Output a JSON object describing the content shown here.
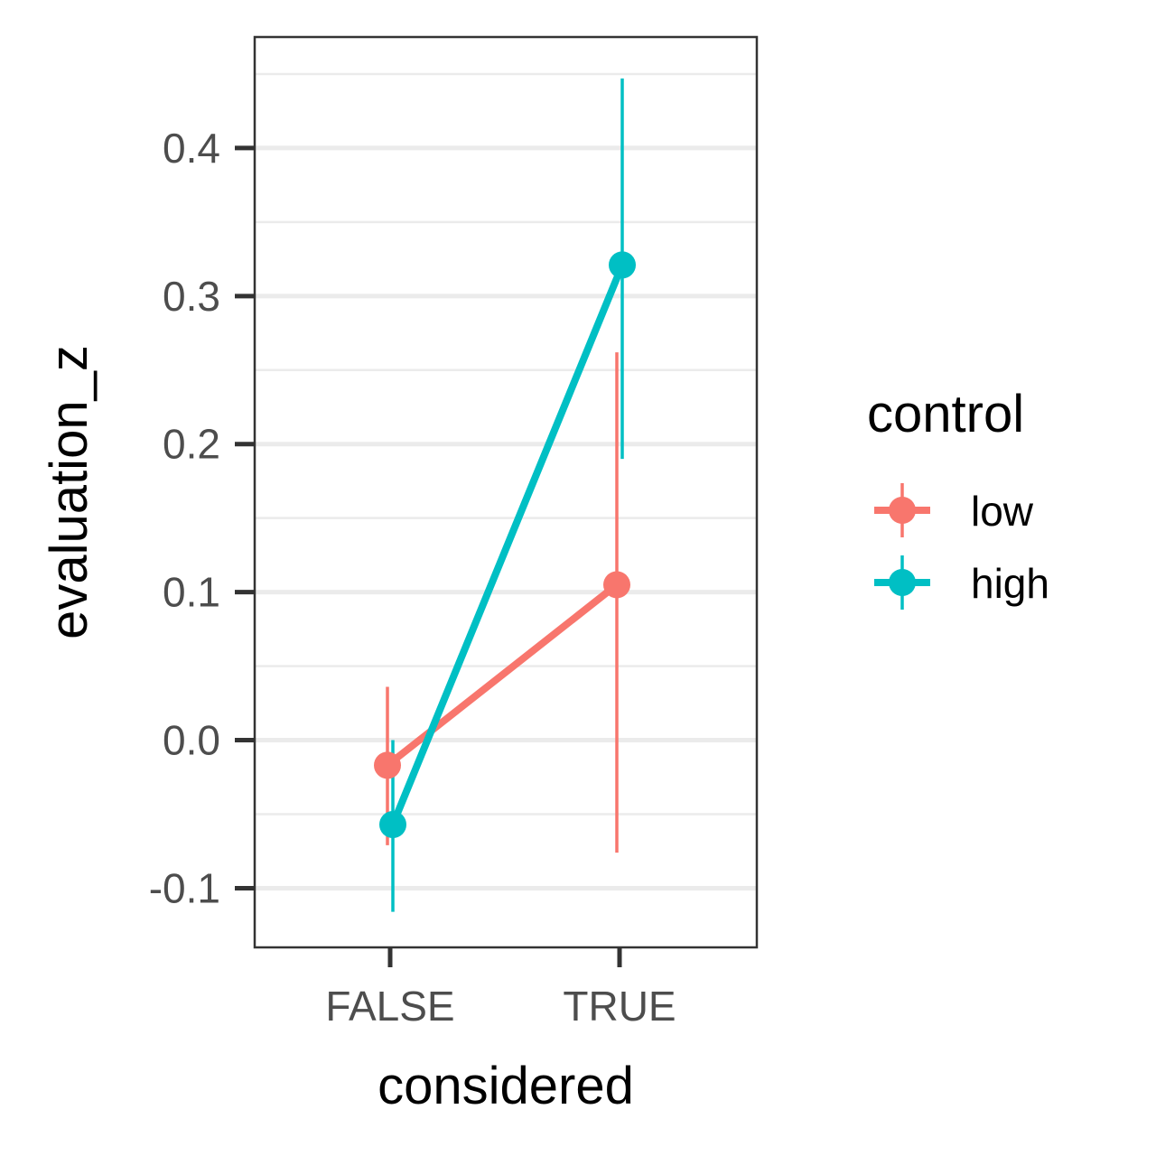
{
  "chart_data": {
    "type": "line",
    "xlabel": "considered",
    "ylabel": "evaluation_z",
    "categories": [
      "FALSE",
      "TRUE"
    ],
    "ylim": [
      -0.14,
      0.475
    ],
    "yticks": [
      -0.1,
      0.0,
      0.1,
      0.2,
      0.3,
      0.4
    ],
    "ytick_labels": [
      "-0.1",
      "0.0",
      "0.1",
      "0.2",
      "0.3",
      "0.4"
    ],
    "grid": true,
    "legend": {
      "title": "control",
      "position": "right",
      "entries": [
        "low",
        "high"
      ]
    },
    "series": [
      {
        "name": "low",
        "color": "#F8766D",
        "values": [
          -0.017,
          0.105
        ],
        "lower": [
          -0.071,
          -0.076
        ],
        "upper": [
          0.036,
          0.262
        ]
      },
      {
        "name": "high",
        "color": "#00BFC4",
        "values": [
          -0.057,
          0.321
        ],
        "lower": [
          -0.116,
          0.19
        ],
        "upper": [
          0.0,
          0.447
        ]
      }
    ]
  }
}
